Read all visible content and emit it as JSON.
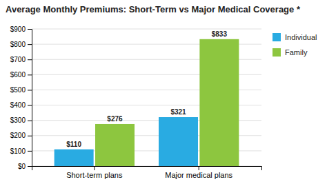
{
  "chart_data": {
    "type": "bar",
    "title": "Average Monthly Premiums: Short-Term vs Major Medical Coverage *",
    "categories": [
      "Short-term plans",
      "Major medical plans"
    ],
    "series": [
      {
        "name": "Individual",
        "color": "#29ABE2",
        "values": [
          110,
          321
        ],
        "value_labels": [
          "$110",
          "$321"
        ]
      },
      {
        "name": "Family",
        "color": "#8DC63F",
        "values": [
          276,
          833
        ],
        "value_labels": [
          "$276",
          "$833"
        ]
      }
    ],
    "ylim": [
      0,
      900
    ],
    "yticks": [
      {
        "value": 0,
        "label": "$0"
      },
      {
        "value": 100,
        "label": "$100"
      },
      {
        "value": 200,
        "label": "$200"
      },
      {
        "value": 300,
        "label": "$300"
      },
      {
        "value": 400,
        "label": "$400"
      },
      {
        "value": 500,
        "label": "$500"
      },
      {
        "value": 600,
        "label": "$600"
      },
      {
        "value": 700,
        "label": "$700"
      },
      {
        "value": 800,
        "label": "$800"
      },
      {
        "value": 900,
        "label": "$900"
      }
    ],
    "grid": true,
    "legend": "right",
    "data_labels": true
  }
}
